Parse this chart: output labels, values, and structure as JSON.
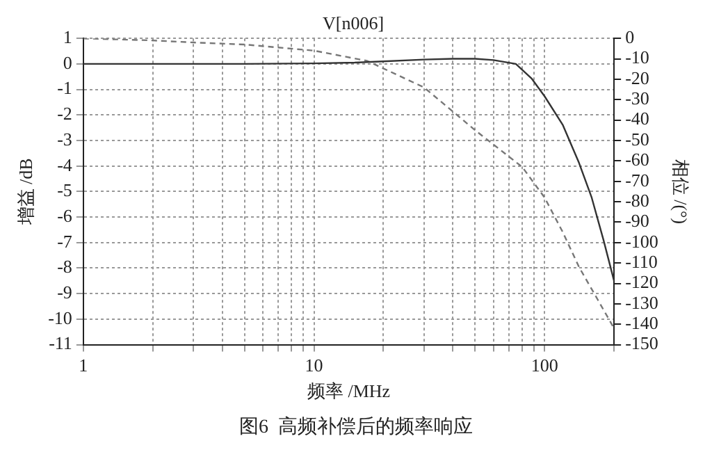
{
  "chart_data": {
    "type": "line",
    "title": "V[n006]",
    "xlabel": "频率 /MHz",
    "ylabel": "增益 /dB",
    "y2label": "相位 /(°)",
    "annotations": [
      "图6  高频补偿后的频率响应"
    ],
    "log": "x",
    "grid": true,
    "legend": false,
    "marker": "none",
    "xlim": [
      1,
      200
    ],
    "xticks": [
      1,
      {
        "value": 2,
        "label": null
      },
      {
        "value": 3,
        "label": null
      },
      {
        "value": 4,
        "label": null
      },
      {
        "value": 5,
        "label": null
      },
      {
        "value": 6,
        "label": null
      },
      {
        "value": 7,
        "label": null
      },
      {
        "value": 8,
        "label": null
      },
      {
        "value": 9,
        "label": null
      },
      10,
      {
        "value": 20,
        "label": null
      },
      {
        "value": 30,
        "label": null
      },
      {
        "value": 40,
        "label": null
      },
      {
        "value": 50,
        "label": null
      },
      {
        "value": 60,
        "label": null
      },
      {
        "value": 70,
        "label": null
      },
      {
        "value": 80,
        "label": null
      },
      {
        "value": 90,
        "label": null
      },
      100,
      {
        "value": 200,
        "label": null
      }
    ],
    "ylim": [
      -11,
      1
    ],
    "yticks": [
      -11,
      -10,
      -9,
      -8,
      -7,
      -6,
      -5,
      -4,
      -3,
      -2,
      -1,
      0,
      1
    ],
    "y2lim": [
      -150,
      0
    ],
    "y2ticks": [
      -150,
      -140,
      -130,
      -120,
      -110,
      -100,
      -90,
      -80,
      -70,
      -60,
      -50,
      -40,
      -30,
      -20,
      -10,
      0
    ],
    "series": [
      {
        "color": "#333333",
        "line_style": "solid",
        "x": [
          1,
          2,
          5,
          10,
          15,
          20,
          30,
          40,
          50,
          60,
          75,
          88,
          100,
          120,
          141,
          160,
          180,
          200
        ],
        "values": [
          0,
          0,
          0,
          0.02,
          0.05,
          0.1,
          0.17,
          0.2,
          0.2,
          0.15,
          0,
          -0.58,
          -1.27,
          -2.4,
          -3.88,
          -5.24,
          -6.9,
          -8.5
        ]
      },
      {
        "color": "#777777",
        "line_style": "dashed",
        "axis": "y2",
        "x": [
          1,
          2,
          3,
          5,
          10,
          17,
          30,
          50,
          80,
          100,
          120,
          141,
          170,
          200
        ],
        "values": [
          0,
          -1,
          -2,
          -3,
          -6,
          -11,
          -24,
          -45,
          -63,
          -78,
          -95,
          -112,
          -128,
          -142
        ]
      }
    ]
  }
}
